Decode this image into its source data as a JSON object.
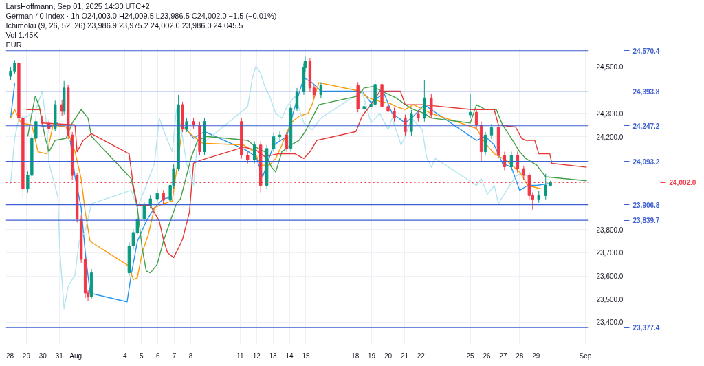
{
  "chart_data": {
    "type": "candlestick",
    "title": "German 40 Index · 1h",
    "subtitle": "O24,003.0 H24,009.5 L23,986.5 C24,002.0 −1.5 (−0.01%)",
    "annotations": [
      "LarsHoffmann, Sep 01, 2025 14:30 UTC+2",
      "Ichimoku (9, 26, 52, 26)  23,986.9  23,975.2  24,002.0  23,986.0  24,045.5",
      "Vol 1.45K",
      "EUR"
    ],
    "x": [
      "2025-07-28T01:00",
      "2025-07-28T07:00",
      "2025-07-28T13:00",
      "2025-07-28T19:00",
      "2025-07-29T02:00",
      "2025-07-29T08:00",
      "2025-07-29T14:00",
      "2025-07-29T23:00",
      "2025-07-30T09:00",
      "2025-07-30T18:00",
      "2025-07-31T04:00",
      "2025-07-31T07:00",
      "2025-07-31T13:00",
      "2025-07-31T19:00",
      "2025-08-01T02:00",
      "2025-08-01T08:00",
      "2025-08-01T14:00",
      "2025-08-01T18:00",
      "2025-08-01T23:00",
      "2025-08-04T06:00",
      "2025-08-04T12:00",
      "2025-08-04T18:00",
      "2025-08-05T04:00",
      "2025-08-05T13:00",
      "2025-08-05T23:00",
      "2025-08-06T08:00",
      "2025-08-06T18:00",
      "2025-08-06T23:00",
      "2025-08-07T06:00",
      "2025-08-07T12:00",
      "2025-08-07T18:00",
      "2025-08-08T04:00",
      "2025-08-08T13:00",
      "2025-08-08T20:00",
      "2025-08-11T02:00",
      "2025-08-11T11:00",
      "2025-08-11T21:00",
      "2025-08-12T06:00",
      "2025-08-12T15:00",
      "2025-08-13T01:00",
      "2025-08-13T10:00",
      "2025-08-13T20:00",
      "2025-08-14T02:00",
      "2025-08-14T11:00",
      "2025-08-14T21:00",
      "2025-08-14T23:00",
      "2025-08-15T06:00",
      "2025-08-15T12:00",
      "2025-08-15T22:00",
      "2025-08-18T04:00",
      "2025-08-18T13:00",
      "2025-08-18T23:00",
      "2025-08-19T05:00",
      "2025-08-19T15:00",
      "2025-08-20T00:00",
      "2025-08-20T09:00",
      "2025-08-20T19:00",
      "2025-08-21T01:00",
      "2025-08-21T10:00",
      "2025-08-21T20:00",
      "2025-08-22T05:00",
      "2025-08-22T15:00",
      "2025-08-25T00:00",
      "2025-08-25T09:00",
      "2025-08-25T16:00",
      "2025-08-25T22:00",
      "2025-08-26T07:00",
      "2025-08-26T17:00",
      "2025-08-27T02:00",
      "2025-08-27T12:00",
      "2025-08-27T21:00",
      "2025-08-28T06:00",
      "2025-08-28T14:00",
      "2025-08-28T19:00",
      "2025-08-29T04:00",
      "2025-08-29T14:00",
      "2025-08-29T21:00"
    ],
    "ohlc": [
      [
        24460,
        24500,
        24445,
        24483
      ],
      [
        24483,
        24530,
        24470,
        24517
      ],
      [
        24517,
        24530,
        24265,
        24280
      ],
      [
        24280,
        24295,
        23935,
        23975
      ],
      [
        23975,
        24050,
        23960,
        24033
      ],
      [
        24033,
        24210,
        24020,
        24193
      ],
      [
        24193,
        24290,
        24180,
        24265
      ],
      [
        24265,
        24290,
        24240,
        24258
      ],
      [
        24258,
        24275,
        24215,
        24236
      ],
      [
        24236,
        24355,
        24225,
        24338
      ],
      [
        24338,
        24360,
        24290,
        24309
      ],
      [
        24309,
        24440,
        24295,
        24410
      ],
      [
        24410,
        24425,
        24190,
        24207
      ],
      [
        24207,
        24220,
        24015,
        24033
      ],
      [
        24033,
        24045,
        23830,
        23845
      ],
      [
        23845,
        23860,
        23655,
        23671
      ],
      [
        23671,
        23685,
        23505,
        23526
      ],
      [
        23526,
        23540,
        23490,
        23511
      ],
      [
        23511,
        23630,
        23500,
        23613
      ],
      [
        23613,
        23745,
        23600,
        23729
      ],
      [
        23729,
        23800,
        23715,
        23787
      ],
      [
        23787,
        23860,
        23775,
        23845
      ],
      [
        23845,
        23920,
        23830,
        23903
      ],
      [
        23903,
        23950,
        23890,
        23932
      ],
      [
        23932,
        23975,
        23915,
        23955
      ],
      [
        23955,
        23970,
        23910,
        23926
      ],
      [
        23926,
        24005,
        23915,
        23990
      ],
      [
        23990,
        24080,
        23975,
        24062
      ],
      [
        24062,
        24380,
        24050,
        24338
      ],
      [
        24338,
        24350,
        24220,
        24236
      ],
      [
        24236,
        24280,
        24220,
        24265
      ],
      [
        24265,
        24280,
        24235,
        24250
      ],
      [
        24250,
        24265,
        24120,
        24135
      ],
      [
        24135,
        24280,
        24120,
        24265
      ],
      [
        24265,
        24280,
        24105,
        24120
      ],
      [
        24120,
        24135,
        24085,
        24100
      ],
      [
        24100,
        24180,
        24085,
        24164
      ],
      [
        24164,
        24180,
        23960,
        23990
      ],
      [
        23990,
        24165,
        23975,
        24149
      ],
      [
        24149,
        24215,
        24135,
        24200
      ],
      [
        24200,
        24225,
        24185,
        24207
      ],
      [
        24207,
        24220,
        24135,
        24149
      ],
      [
        24149,
        24340,
        24135,
        24323
      ],
      [
        24323,
        24410,
        24310,
        24395
      ],
      [
        24395,
        24515,
        24380,
        24497
      ],
      [
        24497,
        24545,
        24480,
        24526
      ],
      [
        24526,
        24540,
        24395,
        24410
      ],
      [
        24410,
        24425,
        24365,
        24381
      ],
      [
        24381,
        24435,
        24365,
        24420
      ],
      [
        24420,
        24435,
        24305,
        24320
      ],
      [
        24320,
        24345,
        24305,
        24330
      ],
      [
        24330,
        24355,
        24315,
        24340
      ],
      [
        24340,
        24445,
        24325,
        24425
      ],
      [
        24425,
        24440,
        24315,
        24330
      ],
      [
        24330,
        24345,
        24295,
        24309
      ],
      [
        24309,
        24325,
        24265,
        24280
      ],
      [
        24280,
        24300,
        24265,
        24280
      ],
      [
        24280,
        24295,
        24205,
        24222
      ],
      [
        24222,
        24315,
        24205,
        24300
      ],
      [
        24300,
        24315,
        24265,
        24280
      ],
      [
        24280,
        24445,
        24265,
        24367
      ],
      [
        24367,
        24385,
        24280,
        24294
      ],
      [
        24294,
        24385,
        24280,
        24305
      ],
      [
        24305,
        24320,
        24235,
        24251
      ],
      [
        24251,
        24265,
        24090,
        24135
      ],
      [
        24135,
        24220,
        24120,
        24207
      ],
      [
        24207,
        24255,
        24190,
        24240
      ],
      [
        24240,
        24255,
        24105,
        24120
      ],
      [
        24120,
        24135,
        24055,
        24070
      ],
      [
        24070,
        24135,
        24055,
        24120
      ],
      [
        24120,
        24135,
        24045,
        24062
      ],
      [
        24062,
        24075,
        24015,
        24033
      ],
      [
        24033,
        24045,
        23930,
        23946
      ],
      [
        23946,
        23960,
        23885,
        23930
      ],
      [
        23930,
        23965,
        23915,
        23946
      ],
      [
        23946,
        24040,
        23930,
        23990
      ],
      [
        23990,
        24010,
        23985,
        24002
      ]
    ],
    "series": [
      {
        "type": "line",
        "color": "#2196f3",
        "x": [
          "2025-07-28T01:00",
          "2025-07-28T07:00",
          "2025-07-28T13:00",
          "2025-07-28T19:00",
          "2025-07-29T02:00",
          "2025-07-29T08:00",
          "2025-07-29T14:00",
          "2025-07-30T09:00",
          "2025-07-30T22:00",
          "2025-07-31T07:00",
          "2025-07-31T16:00",
          "2025-07-31T23:00",
          "2025-08-01T08:00",
          "2025-08-01T14:00",
          "2025-08-01T21:00",
          "2025-08-04T03:00",
          "2025-08-04T09:00",
          "2025-08-04T18:00",
          "2025-08-05T07:00",
          "2025-08-05T19:00",
          "2025-08-06T08:00",
          "2025-08-06T21:00",
          "2025-08-07T06:00",
          "2025-08-07T15:00",
          "2025-08-08T04:00",
          "2025-08-08T20:00",
          "2025-08-11T08:00",
          "2025-08-11T23:00",
          "2025-08-12T09:00",
          "2025-08-13T01:00",
          "2025-08-13T20:00",
          "2025-08-14T08:00",
          "2025-08-14T21:00",
          "2025-08-15T09:00",
          "2025-08-15T22:00",
          "2025-08-18T10:00",
          "2025-08-18T23:00",
          "2025-08-19T18:00",
          "2025-08-20T06:00",
          "2025-08-21T01:00",
          "2025-08-21T13:00",
          "2025-08-22T05:00",
          "2025-08-22T15:00",
          "2025-08-25T09:00",
          "2025-08-25T22:00",
          "2025-08-26T11:00",
          "2025-08-26T23:00",
          "2025-08-27T12:00",
          "2025-08-28T00:00",
          "2025-08-28T12:00",
          "2025-08-29T01:00",
          "2025-08-29T20:00"
        ],
        "values": [
          24280,
          24430,
          null,
          null,
          null,
          null,
          24251,
          24242,
          24259,
          null,
          24184,
          24027,
          23894,
          23700,
          23526,
          23488,
          23604,
          23749,
          23836,
          23894,
          23932,
          23940,
          null,
          24242,
          24193,
          24222,
          24143,
          24114,
          24027,
          24164,
          24201,
          24329,
          24454,
          24433,
          24396,
          24396,
          24346,
          24387,
          24300,
          24259,
          24288,
          24338,
          24317,
          24184,
          24201,
          24164,
          24085,
          24068,
          23969,
          23990,
          23990,
          23998
        ]
      },
      {
        "type": "line",
        "color": "#ff9800",
        "x": [
          "2025-07-28T01:00",
          "2025-07-28T07:00",
          "2025-07-28T16:00",
          "2025-07-29T08:00",
          "2025-07-29T17:00",
          "2025-07-30T06:00",
          "2025-07-30T15:00",
          "2025-07-31T10:00",
          "2025-07-31T23:00",
          "2025-08-01T08:00",
          "2025-08-01T14:00",
          "2025-08-01T21:00",
          "2025-08-04T06:00",
          "2025-08-04T12:00",
          "2025-08-04T18:00",
          "2025-08-05T01:00",
          "2025-08-05T10:00",
          "2025-08-05T19:00",
          "2025-08-06T08:00",
          "2025-08-06T21:00",
          "2025-08-07T12:00",
          "2025-08-08T04:00",
          "2025-08-08T17:00",
          "2025-08-11T05:00",
          "2025-08-11T21:00",
          "2025-08-12T06:00",
          "2025-08-12T19:00",
          "2025-08-13T04:00",
          "2025-08-13T13:00",
          "2025-08-14T02:00",
          "2025-08-14T14:00",
          "2025-08-15T03:00",
          "2025-08-15T09:00",
          "2025-08-15T19:00",
          "2025-08-18T07:00",
          "2025-08-18T20:00",
          "2025-08-19T12:00",
          "2025-08-20T03:00",
          "2025-08-20T12:00",
          "2025-08-21T01:00",
          "2025-08-21T13:00",
          "2025-08-22T15:00",
          "2025-08-25T09:00",
          "2025-08-25T22:00",
          "2025-08-26T11:00",
          "2025-08-27T05:00",
          "2025-08-28T00:00",
          "2025-08-28T12:00",
          "2025-08-29T07:00"
        ],
        "values": [
          24280,
          24317,
          24259,
          24251,
          24135,
          24126,
          24251,
          24242,
          24135,
          24019,
          23874,
          23749,
          23642,
          23584,
          23592,
          23700,
          23778,
          23894,
          23911,
          23923,
          24242,
          24201,
          24172,
          24164,
          24135,
          24077,
          24077,
          24106,
          24164,
          24259,
          24288,
          24300,
          24338,
          24433,
          24396,
          24367,
          24352,
          24343,
          24329,
          24317,
          24338,
          24300,
          24236,
          24172,
          24126,
          24097,
          24048,
          23990,
          23975
        ]
      },
      {
        "type": "line",
        "color": "#b2e5f0",
        "x": [
          "2025-07-28T01:00",
          "2025-07-28T07:00",
          "2025-07-28T13:00",
          "2025-07-29T02:00",
          "2025-07-29T14:00",
          "2025-07-29T23:00",
          "2025-07-30T06:00",
          "2025-07-30T09:00",
          "2025-07-30T15:00",
          "2025-07-30T22:00",
          "2025-07-31T01:00",
          "2025-07-31T07:00",
          "2025-07-31T13:00",
          "2025-07-31T23:00",
          "2025-08-01T05:00",
          "2025-08-01T14:00",
          "2025-08-01T23:00",
          "2025-08-04T09:00",
          "2025-08-04T18:00",
          "2025-08-05T07:00",
          "2025-08-05T19:00",
          "2025-08-06T02:00",
          "2025-08-06T08:00",
          "2025-08-06T14:00",
          "2025-08-06T21:00",
          "2025-08-07T03:00",
          "2025-08-07T09:00",
          "2025-08-07T18:00",
          "2025-08-08T04:00",
          "2025-08-08T10:00",
          "2025-08-08T23:00",
          "2025-08-11T11:00",
          "2025-08-11T18:00",
          "2025-08-11T23:00",
          "2025-08-12T06:00",
          "2025-08-12T12:00",
          "2025-08-12T19:00",
          "2025-08-13T04:00",
          "2025-08-13T13:00",
          "2025-08-13T20:00",
          "2025-08-14T08:00",
          "2025-08-14T21:00",
          "2025-08-15T09:00",
          "2025-08-15T22:00",
          "2025-08-18T10:00",
          "2025-08-18T23:00",
          "2025-08-19T12:00",
          "2025-08-20T00:00",
          "2025-08-20T06:00",
          "2025-08-20T19:00",
          "2025-08-21T01:00",
          "2025-08-21T10:00",
          "2025-08-22T02:00",
          "2025-08-22T08:00",
          "2025-08-22T15:00",
          "2025-08-22T21:00",
          "2025-08-25T09:00",
          "2025-08-25T16:00",
          "2025-08-26T01:00",
          "2025-08-26T11:00",
          "2025-08-26T17:00",
          "2025-08-27T05:00",
          "2025-08-27T18:00",
          "2025-08-28T03:00",
          "2025-08-28T12:00"
        ],
        "values": [
          23998,
          24193,
          24280,
          24288,
          24317,
          24396,
          24242,
          24085,
          24019,
          23940,
          23700,
          23459,
          23555,
          23604,
          23749,
          23795,
          23911,
          23969,
          23894,
          23990,
          24085,
          24280,
          24230,
          24184,
          24135,
          24317,
          24251,
          24085,
          23990,
          24184,
          24184,
          24329,
          24454,
          24503,
          24474,
          24416,
          24375,
          24300,
          24280,
          24329,
          24375,
          24259,
          24230,
          24280,
          24396,
          24259,
          24300,
          24230,
          24280,
          24164,
          24201,
          24280,
          24230,
          24114,
          24068,
          24106,
          23990,
          24019,
          23952,
          23990,
          23911,
          23969,
          24027,
          24048,
          24027
        ]
      },
      {
        "type": "line",
        "color": "#43a047",
        "x": [
          "2025-07-29T02:00",
          "2025-07-29T08:00",
          "2025-07-29T13:00",
          "2025-07-29T19:00",
          "2025-07-30T03:00",
          "2025-07-30T09:00",
          "2025-07-30T18:00",
          "2025-07-31T10:00",
          "2025-07-31T19:00",
          "2025-08-01T08:00",
          "2025-08-01T18:00",
          "2025-08-01T23:00",
          "2025-08-04T09:00",
          "2025-08-04T18:00",
          "2025-08-05T01:00",
          "2025-08-05T07:00",
          "2025-08-05T13:00",
          "2025-08-05T23:00",
          "2025-08-06T08:00",
          "2025-08-06T18:00",
          "2025-08-07T03:00",
          "2025-08-07T09:00",
          "2025-08-08T01:00",
          "2025-08-08T10:00",
          "2025-08-08T23:00",
          "2025-08-11T11:00",
          "2025-08-11T23:00",
          "2025-08-12T12:00",
          "2025-08-12T22:00",
          "2025-08-13T04:00",
          "2025-08-13T13:00",
          "2025-08-14T02:00",
          "2025-08-14T14:00",
          "2025-08-14T23:00",
          "2025-08-15T09:00",
          "2025-08-15T19:00",
          "2025-08-18T04:00",
          "2025-08-18T13:00",
          "2025-08-19T02:00",
          "2025-08-19T15:00",
          "2025-08-20T12:00",
          "2025-08-21T01:00",
          "2025-08-21T13:00",
          "2025-08-22T05:00",
          "2025-08-22T15:00",
          "2025-08-25T00:00",
          "2025-08-25T09:00",
          "2025-08-25T22:00",
          "2025-08-26T14:00",
          "2025-08-26T23:00",
          "2025-08-27T12:00",
          "2025-08-28T00:00",
          "2025-08-28T09:00",
          "2025-08-29T01:00",
          "2025-08-29T14:00",
          "2025-09-01T02:00"
        ],
        "values": [
          24201,
          24300,
          24375,
          24329,
          24201,
          24135,
          24184,
          24193,
          24259,
          24317,
          24280,
          24201,
          24019,
          23894,
          23720,
          23621,
          23613,
          23650,
          23749,
          23836,
          23911,
          23932,
          24114,
          24184,
          24201,
          24184,
          24155,
          24135,
          24068,
          24048,
          24135,
          24164,
          24184,
          24222,
          24280,
          24338,
          24375,
          24410,
          24416,
          24396,
          24367,
          24338,
          24317,
          24300,
          24280,
          24259,
          24338,
          24317,
          24317,
          24251,
          24193,
          24135,
          24106,
          24077,
          24027,
          24010
        ]
      },
      {
        "type": "line",
        "color": "#e53935",
        "x": [
          "2025-07-29T00:00",
          "2025-07-29T20:00",
          "2025-07-29T23:00",
          "2025-07-31T23:00",
          "2025-08-01T02:00",
          "2025-08-01T11:00",
          "2025-08-01T23:00",
          "2025-08-04T06:00",
          "2025-08-04T12:00",
          "2025-08-04T18:00",
          "2025-08-05T13:00",
          "2025-08-06T02:00",
          "2025-08-06T08:00",
          "2025-08-06T14:00",
          "2025-08-06T23:00",
          "2025-08-07T06:00",
          "2025-08-07T12:00",
          "2025-08-07T22:00",
          "2025-08-08T04:00",
          "2025-08-08T13:00",
          "2025-08-11T05:00",
          "2025-08-11T23:00",
          "2025-08-12T12:00",
          "2025-08-13T07:00",
          "2025-08-14T08:00",
          "2025-08-14T21:00",
          "2025-08-15T06:00",
          "2025-08-15T16:00",
          "2025-08-18T01:00",
          "2025-08-18T10:00",
          "2025-08-18T23:00",
          "2025-08-19T12:00",
          "2025-08-20T06:00",
          "2025-08-20T18:00",
          "2025-08-21T01:00",
          "2025-08-22T02:00",
          "2025-08-25T03:00",
          "2025-08-26T11:00",
          "2025-08-26T17:00",
          "2025-08-27T18:00",
          "2025-08-28T03:00",
          "2025-08-28T09:00",
          "2025-08-28T22:00",
          "2025-08-29T04:00",
          "2025-08-29T20:00",
          "2025-08-29T23:00",
          "2025-09-01T02:00"
        ],
        "values": [
          24317,
          24317,
          24259,
          24251,
          24135,
          24184,
          24213,
          24126,
          23990,
          23903,
          23903,
          23836,
          23758,
          23700,
          23679,
          23720,
          23758,
          23874,
          24085,
          24097,
          24155,
          24143,
          24114,
          24126,
          24126,
          24106,
          24135,
          24184,
          24222,
          24288,
          24338,
          24396,
          24396,
          24396,
          24338,
          24338,
          24317,
          24317,
          24251,
          24242,
          24193,
          24184,
          24184,
          24126,
          24126,
          24085,
          24068
        ]
      }
    ],
    "xlim": [
      "2025-07-27T18:00",
      "2025-09-01T05:00"
    ],
    "ylim": [
      23305,
      24580
    ],
    "xticks": [
      {
        "value": "2025-07-28",
        "label": "28"
      },
      {
        "value": "2025-07-29",
        "label": "29"
      },
      {
        "value": "2025-07-30",
        "label": "30"
      },
      {
        "value": "2025-07-31",
        "label": "31"
      },
      {
        "value": "2025-08-01",
        "label": "Aug"
      },
      {
        "value": "2025-08-04",
        "label": "4"
      },
      {
        "value": "2025-08-05",
        "label": "5"
      },
      {
        "value": "2025-08-06",
        "label": "6"
      },
      {
        "value": "2025-08-07",
        "label": "7"
      },
      {
        "value": "2025-08-08",
        "label": "8"
      },
      {
        "value": "2025-08-11",
        "label": "11"
      },
      {
        "value": "2025-08-12",
        "label": "12"
      },
      {
        "value": "2025-08-13",
        "label": "13"
      },
      {
        "value": "2025-08-14",
        "label": "14"
      },
      {
        "value": "2025-08-15",
        "label": "15"
      },
      {
        "value": "2025-08-18",
        "label": "18"
      },
      {
        "value": "2025-08-19",
        "label": "19"
      },
      {
        "value": "2025-08-20",
        "label": "20"
      },
      {
        "value": "2025-08-21",
        "label": "21"
      },
      {
        "value": "2025-08-22",
        "label": "22"
      },
      {
        "value": "2025-08-25",
        "label": "25"
      },
      {
        "value": "2025-08-26",
        "label": "26"
      },
      {
        "value": "2025-08-27",
        "label": "27"
      },
      {
        "value": "2025-08-28",
        "label": "28"
      },
      {
        "value": "2025-08-29",
        "label": "29"
      },
      {
        "value": "2025-09-01",
        "label": "Sep"
      }
    ],
    "yticks": [
      {
        "value": 23400,
        "label": "23,400.0"
      },
      {
        "value": 23500,
        "label": "23,500.0"
      },
      {
        "value": 23600,
        "label": "23,600.0"
      },
      {
        "value": 23700,
        "label": "23,700.0"
      },
      {
        "value": 23800,
        "label": "23,800.0"
      },
      {
        "value": 24200,
        "label": "24,200.0"
      },
      {
        "value": 24300,
        "label": "24,300.0"
      },
      {
        "value": 24500,
        "label": "24,500.0"
      }
    ],
    "ref_lines": [
      {
        "axis": "y",
        "value": 24570.4,
        "label": "24,570.4",
        "color": "#3d5fd0"
      },
      {
        "axis": "y",
        "value": 24393.8,
        "label": "24,393.8",
        "color": "#3d5fd0"
      },
      {
        "axis": "y",
        "value": 24247.2,
        "label": "24,247.2",
        "color": "#3d5fd0"
      },
      {
        "axis": "y",
        "value": 24093.2,
        "label": "24,093.2",
        "color": "#3d5fd0"
      },
      {
        "axis": "y",
        "value": 24002.0,
        "label": "24,002.0",
        "color": "#f23645",
        "line_style": "dotted"
      },
      {
        "axis": "y",
        "value": 23906.8,
        "label": "23,906.8",
        "color": "#3d5fd0"
      },
      {
        "axis": "y",
        "value": 23839.7,
        "label": "23,839.7",
        "color": "#3d5fd0"
      },
      {
        "axis": "y",
        "value": 23377.4,
        "label": "23,377.4",
        "color": "#3d5fd0"
      }
    ],
    "grid": true
  }
}
